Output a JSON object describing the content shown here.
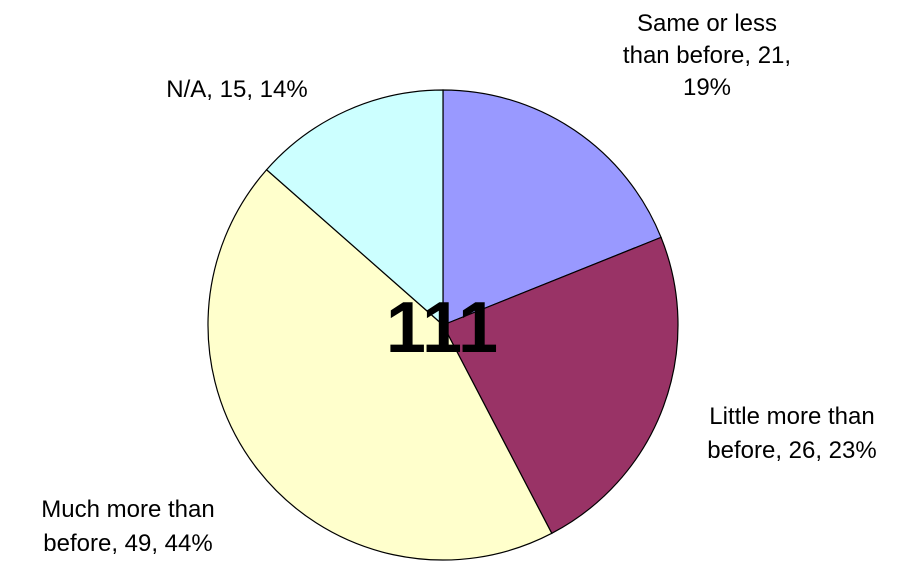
{
  "chart_data": {
    "type": "pie",
    "total_label": "111",
    "start_angle_deg": 0,
    "direction": "clockwise",
    "slices": [
      {
        "category": "Same or less than before",
        "value": 21,
        "percent": 19,
        "color": "#9999ff",
        "label_lines": [
          "Same or less",
          "than before, 21,",
          "19%"
        ]
      },
      {
        "category": "Little more than before",
        "value": 26,
        "percent": 23,
        "color": "#993366",
        "label_lines": [
          "Little more than",
          "before, 26, 23%"
        ]
      },
      {
        "category": "Much more than before",
        "value": 49,
        "percent": 44,
        "color": "#ffffcc",
        "label_lines": [
          "Much more than",
          "before, 49, 44%"
        ]
      },
      {
        "category": "N/A",
        "value": 15,
        "percent": 14,
        "color": "#ccffff",
        "label_lines": [
          "N/A, 15, 14%"
        ]
      }
    ],
    "stroke_color": "#000000"
  }
}
